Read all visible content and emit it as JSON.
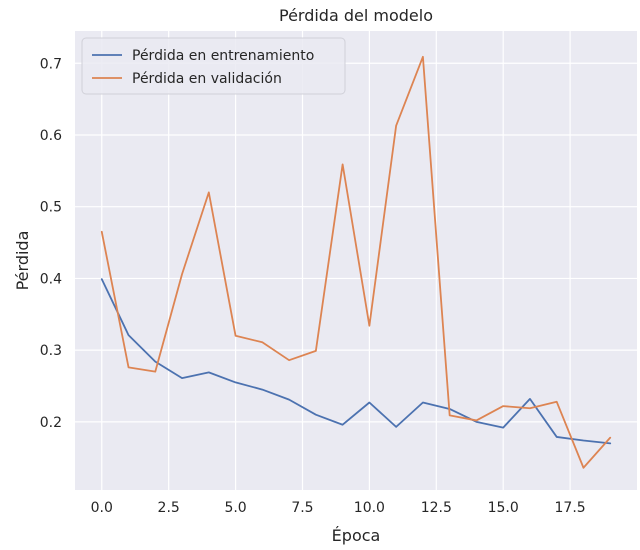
{
  "chart_data": {
    "type": "line",
    "title": "Pérdida del modelo",
    "xlabel": "Época",
    "ylabel": "Pérdida",
    "xlim": [
      -1.0,
      20.0
    ],
    "ylim": [
      0.105,
      0.745
    ],
    "xticks": [
      0.0,
      2.5,
      5.0,
      7.5,
      10.0,
      12.5,
      15.0,
      17.5
    ],
    "xtick_labels": [
      "0.0",
      "2.5",
      "5.0",
      "7.5",
      "10.0",
      "12.5",
      "15.0",
      "17.5"
    ],
    "yticks": [
      0.2,
      0.3,
      0.4,
      0.5,
      0.6,
      0.7
    ],
    "ytick_labels": [
      "0.2",
      "0.3",
      "0.4",
      "0.5",
      "0.6",
      "0.7"
    ],
    "grid": true,
    "legend_position": "top-left",
    "x": [
      0,
      1,
      2,
      3,
      4,
      5,
      6,
      7,
      8,
      9,
      10,
      11,
      12,
      13,
      14,
      15,
      16,
      17,
      18,
      19
    ],
    "series": [
      {
        "name": "Pérdida en entrenamiento",
        "color": "#4c72b0",
        "values": [
          0.399,
          0.321,
          0.284,
          0.261,
          0.269,
          0.255,
          0.245,
          0.231,
          0.21,
          0.196,
          0.227,
          0.193,
          0.227,
          0.218,
          0.2,
          0.192,
          0.232,
          0.179,
          0.174,
          0.17
        ]
      },
      {
        "name": "Pérdida en validación",
        "color": "#dd8452",
        "values": [
          0.465,
          0.276,
          0.27,
          0.406,
          0.52,
          0.32,
          0.311,
          0.286,
          0.299,
          0.559,
          0.334,
          0.613,
          0.709,
          0.209,
          0.202,
          0.222,
          0.219,
          0.228,
          0.136,
          0.178
        ]
      }
    ]
  }
}
